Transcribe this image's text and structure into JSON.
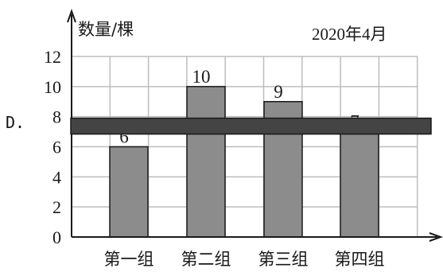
{
  "option_label": "D.",
  "chart_data": {
    "type": "bar",
    "ylabel": "数量/棵",
    "date_note": "2020年4月",
    "categories": [
      "第一组",
      "第二组",
      "第三组",
      "第四组"
    ],
    "values": [
      6,
      10,
      9,
      7
    ],
    "ylim": [
      0,
      12
    ],
    "yticks": [
      0,
      2,
      4,
      6,
      8,
      10,
      12
    ],
    "grid": true,
    "band_value": 7,
    "colors": {
      "bar": "#8c8c8c",
      "band": "#444444",
      "grid": "#bdbdbd",
      "axis": "#1a1a1a"
    }
  }
}
